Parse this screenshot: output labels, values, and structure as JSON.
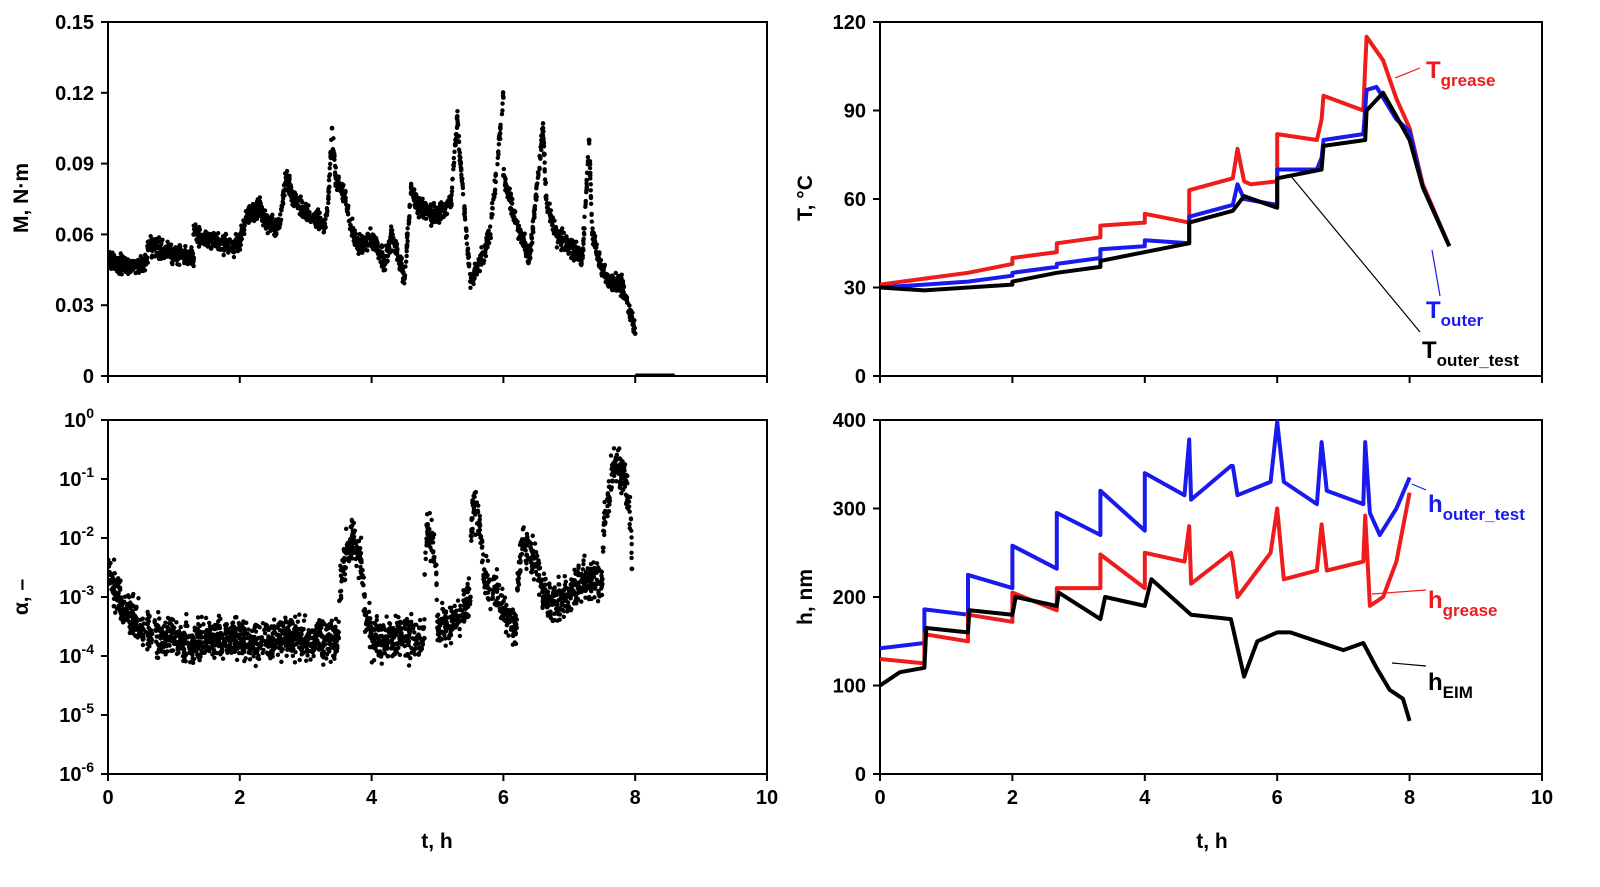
{
  "colors": {
    "black": "#000000",
    "red": "#ee1c1c",
    "blue": "#1a1aee"
  },
  "chart_data": [
    {
      "type": "scatter",
      "xlabel": "",
      "ylabel": "M, N·m",
      "xlim": [
        0,
        10
      ],
      "ylim": [
        0,
        0.15
      ],
      "xticks": [
        "0",
        "2",
        "4",
        "6",
        "8",
        "10"
      ],
      "yticks": [
        "0",
        "0.03",
        "0.06",
        "0.09",
        "0.12",
        "0.15"
      ],
      "series": [
        {
          "color": "#000000",
          "x": [
            0.0,
            0.2,
            0.4,
            0.6,
            0.6,
            0.8,
            1.0,
            1.3,
            1.3,
            1.6,
            1.9,
            2.0,
            2.1,
            2.3,
            2.4,
            2.6,
            2.7,
            2.8,
            3.0,
            3.2,
            3.3,
            3.35,
            3.4,
            3.45,
            3.6,
            3.7,
            3.8,
            4.0,
            4.2,
            4.3,
            4.5,
            4.6,
            4.7,
            4.8,
            5.0,
            5.2,
            5.3,
            5.35,
            5.5,
            5.6,
            5.8,
            6.0,
            6.0,
            6.2,
            6.4,
            6.6,
            6.65,
            6.8,
            7.0,
            7.2,
            7.3,
            7.35,
            7.5,
            7.6,
            7.8,
            7.95,
            8.0
          ],
          "y": [
            0.05,
            0.047,
            0.046,
            0.048,
            0.055,
            0.054,
            0.052,
            0.05,
            0.06,
            0.057,
            0.055,
            0.057,
            0.066,
            0.072,
            0.065,
            0.063,
            0.084,
            0.076,
            0.069,
            0.066,
            0.063,
            0.078,
            0.105,
            0.085,
            0.075,
            0.062,
            0.055,
            0.058,
            0.048,
            0.06,
            0.042,
            0.08,
            0.072,
            0.07,
            0.068,
            0.072,
            0.11,
            0.09,
            0.04,
            0.045,
            0.06,
            0.118,
            0.085,
            0.065,
            0.05,
            0.105,
            0.075,
            0.06,
            0.055,
            0.05,
            0.1,
            0.06,
            0.045,
            0.04,
            0.038,
            0.025,
            0.018
          ]
        },
        {
          "color": "#000000",
          "x": [
            8.0,
            8.6
          ],
          "y": [
            0.0,
            0.0
          ]
        }
      ]
    },
    {
      "type": "line",
      "xlabel": "",
      "ylabel": "T, °C",
      "xlim": [
        0,
        10
      ],
      "ylim": [
        0,
        120
      ],
      "xticks": [
        "0",
        "2",
        "4",
        "6",
        "8",
        "10"
      ],
      "yticks": [
        "0",
        "30",
        "60",
        "90",
        "120"
      ],
      "series": [
        {
          "name": "Tgrease",
          "label_main": "T",
          "label_sub": "grease",
          "color": "#ee1c1c",
          "x": [
            0,
            0.67,
            1.33,
            1.33,
            2.0,
            2.0,
            2.67,
            2.67,
            3.33,
            3.33,
            4.0,
            4.0,
            4.67,
            4.67,
            5.33,
            5.4,
            5.5,
            5.6,
            6.0,
            6.0,
            6.6,
            6.67,
            6.7,
            7.3,
            7.33,
            7.35,
            7.6,
            7.8,
            8.0,
            8.2,
            8.6
          ],
          "y": [
            31,
            33,
            35,
            35,
            38,
            40,
            42,
            45,
            47,
            51,
            52,
            55,
            52,
            63,
            67,
            77,
            66,
            65,
            66,
            82,
            80,
            87,
            95,
            90,
            105,
            115,
            107,
            94,
            84,
            65,
            44
          ]
        },
        {
          "name": "Touter",
          "label_main": "T",
          "label_sub": "outer",
          "color": "#1a1aee",
          "x": [
            0,
            0.67,
            1.33,
            1.33,
            2.0,
            2.0,
            2.67,
            2.67,
            3.33,
            3.33,
            4.0,
            4.0,
            4.67,
            4.67,
            5.33,
            5.4,
            5.5,
            6.0,
            6.0,
            6.6,
            6.67,
            6.7,
            7.3,
            7.35,
            7.5,
            7.8,
            8.0,
            8.2,
            8.6
          ],
          "y": [
            30,
            31,
            32,
            32,
            34,
            35,
            37,
            38,
            40,
            43,
            44,
            46,
            45,
            54,
            58,
            65,
            60,
            58,
            70,
            70,
            74,
            80,
            82,
            97,
            98,
            87,
            83,
            64,
            44
          ]
        },
        {
          "name": "Touter_test",
          "label_main": "T",
          "label_sub": "outer_test",
          "color": "#000000",
          "x": [
            0,
            0.67,
            1.33,
            2.0,
            2.0,
            2.67,
            3.33,
            3.33,
            4.0,
            4.67,
            4.67,
            5.33,
            5.5,
            6.0,
            6.0,
            6.67,
            6.7,
            7.33,
            7.35,
            7.6,
            7.8,
            8.0,
            8.2,
            8.6
          ],
          "y": [
            30,
            29,
            30,
            31,
            32,
            35,
            37,
            39,
            42,
            45,
            52,
            56,
            61,
            57,
            67,
            70,
            78,
            80,
            90,
            96,
            88,
            80,
            64,
            44
          ]
        }
      ]
    },
    {
      "type": "scatter",
      "xlabel": "t, h",
      "ylabel": "α, –",
      "xlim": [
        0,
        10
      ],
      "ylim": [
        1e-06,
        1
      ],
      "yscale": "log",
      "xticks": [
        "0",
        "2",
        "4",
        "6",
        "8",
        "10"
      ],
      "yticks": [
        {
          "base": "10",
          "exp": "-6"
        },
        {
          "base": "10",
          "exp": "-5"
        },
        {
          "base": "10",
          "exp": "-4"
        },
        {
          "base": "10",
          "exp": "-3"
        },
        {
          "base": "10",
          "exp": "-2"
        },
        {
          "base": "10",
          "exp": "-1"
        },
        {
          "base": "10",
          "exp": "0"
        }
      ],
      "series": [
        {
          "color": "#000000",
          "x": [
            0.0,
            0.1,
            0.2,
            0.3,
            0.5,
            0.8,
            1.0,
            1.3,
            1.5,
            2.0,
            2.2,
            2.5,
            3.0,
            3.5,
            3.7,
            3.9,
            4.0,
            4.5,
            4.8,
            4.85,
            5.0,
            5.3,
            5.5,
            5.55,
            5.7,
            6.0,
            6.2,
            6.3,
            6.6,
            6.8,
            7.0,
            7.2,
            7.5,
            7.6,
            7.7,
            7.95
          ],
          "y": [
            0.0025,
            0.0015,
            0.0008,
            0.0005,
            0.0003,
            0.0002,
            0.0002,
            0.00015,
            0.0002,
            0.0002,
            0.00015,
            0.0002,
            0.0002,
            0.0002,
            0.01,
            0.0005,
            0.0002,
            0.0002,
            0.0002,
            0.015,
            0.0003,
            0.0004,
            0.001,
            0.04,
            0.002,
            0.0006,
            0.0003,
            0.008,
            0.001,
            0.0008,
            0.0012,
            0.0018,
            0.002,
            0.05,
            0.2,
            0.003
          ]
        }
      ]
    },
    {
      "type": "line",
      "xlabel": "t, h",
      "ylabel": "h, nm",
      "xlim": [
        0,
        10
      ],
      "ylim": [
        0,
        400
      ],
      "xticks": [
        "0",
        "2",
        "4",
        "6",
        "8",
        "10"
      ],
      "yticks": [
        "0",
        "100",
        "200",
        "300",
        "400"
      ],
      "series": [
        {
          "name": "houter_test",
          "label_main": "h",
          "label_sub": "outer_test",
          "color": "#1a1aee",
          "x": [
            0,
            0.67,
            0.67,
            1.33,
            1.33,
            2.0,
            2.0,
            2.67,
            2.67,
            3.33,
            3.33,
            4.0,
            4.0,
            4.6,
            4.67,
            4.7,
            5.3,
            5.33,
            5.4,
            5.9,
            6.0,
            6.1,
            6.6,
            6.67,
            6.75,
            7.3,
            7.33,
            7.4,
            7.55,
            7.8,
            8.0
          ],
          "y": [
            142,
            148,
            186,
            180,
            225,
            210,
            258,
            232,
            295,
            270,
            320,
            275,
            340,
            315,
            378,
            310,
            348,
            348,
            315,
            330,
            398,
            330,
            305,
            375,
            320,
            305,
            375,
            295,
            270,
            300,
            335
          ]
        },
        {
          "name": "hgrease",
          "label_main": "h",
          "label_sub": "grease",
          "color": "#ee1c1c",
          "x": [
            0,
            0.67,
            0.67,
            1.33,
            1.33,
            2.0,
            2.0,
            2.67,
            2.67,
            3.33,
            3.33,
            4.0,
            4.0,
            4.6,
            4.67,
            4.7,
            5.3,
            5.33,
            5.4,
            5.9,
            6.0,
            6.1,
            6.6,
            6.67,
            6.75,
            7.3,
            7.33,
            7.4,
            7.6,
            7.8,
            8.0
          ],
          "y": [
            130,
            125,
            158,
            150,
            180,
            172,
            205,
            185,
            210,
            210,
            248,
            210,
            250,
            240,
            280,
            215,
            250,
            240,
            200,
            250,
            300,
            220,
            230,
            282,
            230,
            240,
            292,
            190,
            200,
            240,
            318
          ]
        },
        {
          "name": "hEIM",
          "label_main": "h",
          "label_sub": "EIM",
          "color": "#000000",
          "x": [
            0,
            0.3,
            0.67,
            0.7,
            1.33,
            1.35,
            2.0,
            2.05,
            2.67,
            2.7,
            3.33,
            3.4,
            4.0,
            4.1,
            4.7,
            5.3,
            5.5,
            5.7,
            6.0,
            6.2,
            6.6,
            7.0,
            7.3,
            7.5,
            7.7,
            7.9,
            8.0
          ],
          "y": [
            100,
            115,
            120,
            165,
            160,
            185,
            180,
            200,
            190,
            205,
            175,
            200,
            190,
            220,
            180,
            175,
            110,
            150,
            160,
            160,
            150,
            140,
            148,
            120,
            95,
            85,
            60
          ]
        }
      ]
    }
  ]
}
